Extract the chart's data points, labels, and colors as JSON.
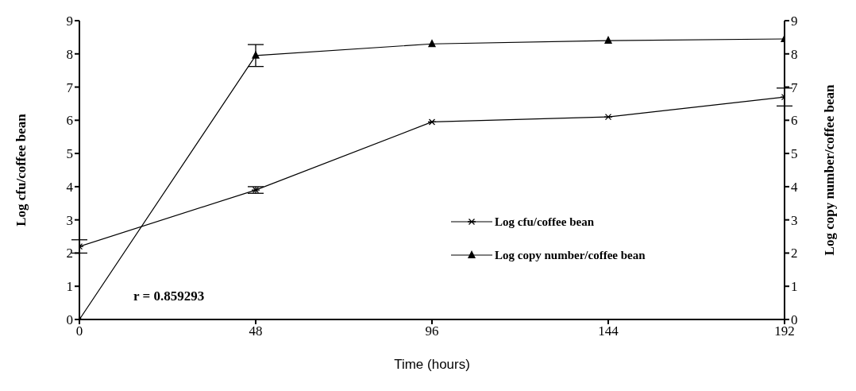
{
  "chart_data": {
    "type": "line",
    "xlabel": "Time (hours)",
    "ylabel": "Log cfu/coffee bean",
    "y2label": "Log copy number/coffee bean",
    "x": [
      0,
      48,
      96,
      144,
      192
    ],
    "series": [
      {
        "name": "Log cfu/coffee bean",
        "color": "#000000",
        "marker": "cross",
        "values": [
          2.2,
          3.9,
          5.95,
          6.1,
          6.7
        ],
        "errors": [
          0.2,
          0.1,
          null,
          null,
          0.27
        ]
      },
      {
        "name": "Log copy number/coffee bean",
        "color": "#000000",
        "marker": "triangle",
        "axis": "y2",
        "values": [
          0,
          7.95,
          8.3,
          8.4,
          8.45
        ],
        "errors": [
          null,
          0.33,
          null,
          null,
          null
        ]
      }
    ],
    "xlim": [
      0,
      192
    ],
    "xticks": [
      0,
      48,
      96,
      144,
      192
    ],
    "ylim": [
      0,
      9
    ],
    "yticks": [
      0,
      1,
      2,
      3,
      4,
      5,
      6,
      7,
      8,
      9
    ],
    "y2lim": [
      0,
      9
    ],
    "y2ticks": [
      0,
      1,
      2,
      3,
      4,
      5,
      6,
      7,
      8,
      9
    ],
    "annotations": [
      "r = 0.859293"
    ],
    "legend": "bottom right",
    "grid": false,
    "line_style": "solid"
  }
}
